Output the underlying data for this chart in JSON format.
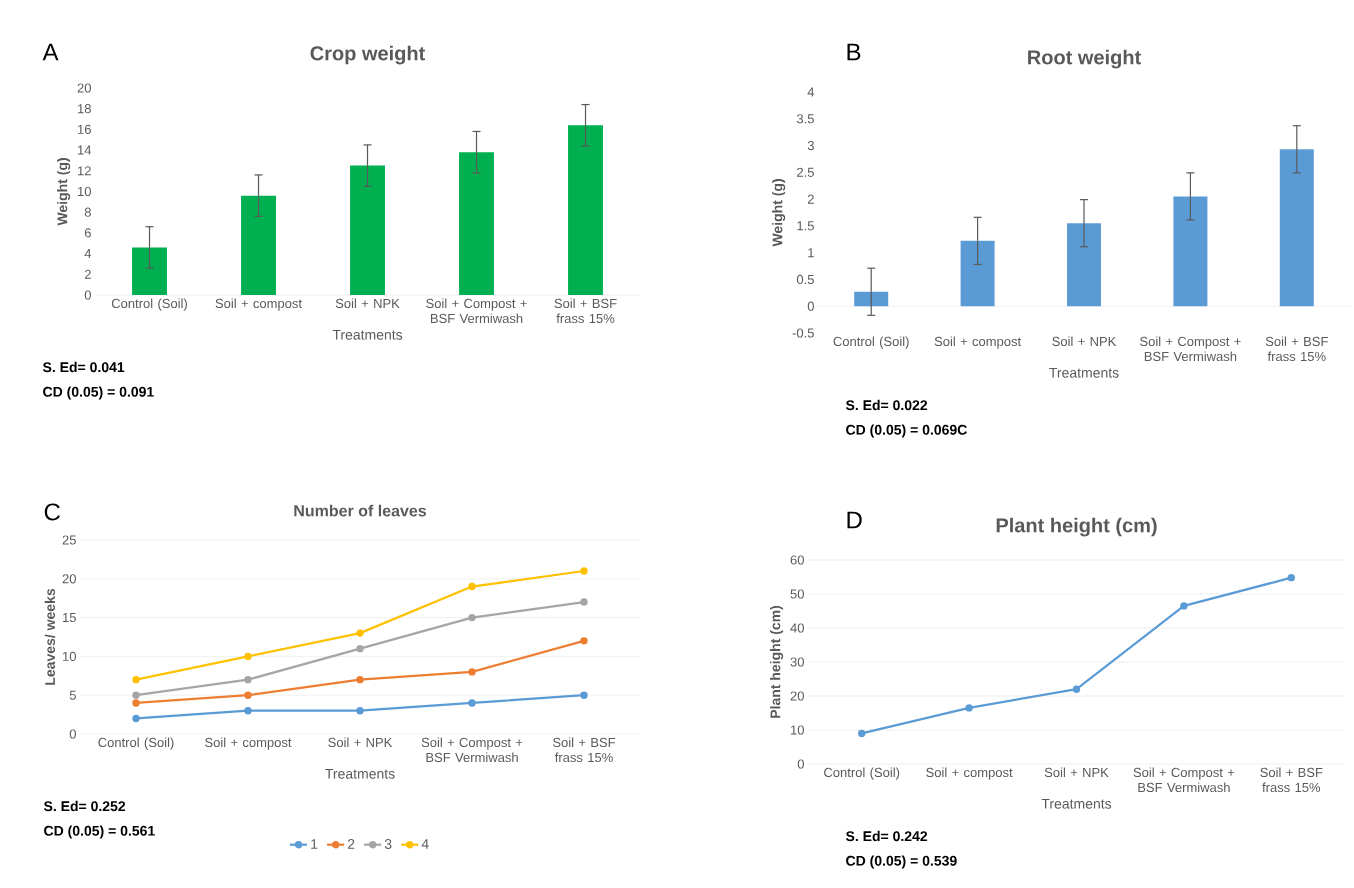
{
  "chart_data": [
    {
      "type": "bar",
      "title": "Crop weight",
      "xlabel": "Treatments",
      "ylabel": "Weight (g)",
      "annotations": [
        "A",
        "S. Ed= 0.041",
        "CD (0.05) = 0.091"
      ],
      "categories": [
        "Control (Soil)",
        "Soil + compost",
        "Soil + NPK",
        "Soil + Compost + BSF Vermiwash",
        "Soil + BSF frass 15%"
      ],
      "values": [
        4.6,
        9.6,
        12.5,
        13.8,
        16.4
      ],
      "errors": [
        2,
        2,
        2,
        2,
        2
      ],
      "color": "#00b050",
      "ylim": [
        0,
        20
      ],
      "yticks": [
        0,
        2,
        4,
        6,
        8,
        10,
        12,
        14,
        16,
        18,
        20
      ],
      "grid": false,
      "legend": false
    },
    {
      "type": "bar",
      "title": "Root weight",
      "xlabel": "Treatments",
      "ylabel": "Weight (g)",
      "annotations": [
        "B",
        "S. Ed= 0.022",
        "CD (0.05) = 0.069C"
      ],
      "categories": [
        "Control (Soil)",
        "Soil + compost",
        "Soil + NPK",
        "Soil + Compost + BSF Vermiwash",
        "Soil + BSF frass 15%"
      ],
      "values": [
        0.27,
        1.22,
        1.55,
        2.05,
        2.93
      ],
      "errors": [
        0.44,
        0.44,
        0.44,
        0.44,
        0.44
      ],
      "color": "#5b9bd5",
      "ylim": [
        -0.5,
        4
      ],
      "yticks": [
        -0.5,
        0,
        0.5,
        1,
        1.5,
        2,
        2.5,
        3,
        3.5,
        4
      ],
      "grid": false,
      "legend": false
    },
    {
      "type": "line",
      "title": "Number of leaves",
      "xlabel": "Treatments",
      "ylabel": "Leaves/ weeks",
      "annotations": [
        "C",
        "S. Ed= 0.252",
        "CD (0.05) = 0.561"
      ],
      "categories": [
        "Control (Soil)",
        "Soil + compost",
        "Soil + NPK",
        "Soil + Compost + BSF Vermiwash",
        "Soil + BSF frass 15%"
      ],
      "series": [
        {
          "name": "1",
          "color": "#5b9bd5",
          "values": [
            2,
            3,
            3,
            4,
            5
          ]
        },
        {
          "name": "2",
          "color": "#ed7d31",
          "values": [
            4,
            5,
            7,
            8,
            12
          ]
        },
        {
          "name": "3",
          "color": "#a5a5a5",
          "values": [
            5,
            7,
            11,
            15,
            17
          ]
        },
        {
          "name": "4",
          "color": "#ffc000",
          "values": [
            7,
            10,
            13,
            19,
            21
          ]
        }
      ],
      "ylim": [
        0,
        25
      ],
      "yticks": [
        0,
        5,
        10,
        15,
        20,
        25
      ],
      "grid": "y",
      "legend": "bottom",
      "marker": "circle",
      "line_style": "solid"
    },
    {
      "type": "line",
      "title": "Plant height (cm)",
      "xlabel": "Treatments",
      "ylabel": "Plant height (cm)",
      "annotations": [
        "D",
        "S. Ed= 0.242",
        "CD (0.05) = 0.539"
      ],
      "categories": [
        "Control (Soil)",
        "Soil + compost",
        "Soil + NPK",
        "Soil + Compost + BSF Vermiwash",
        "Soil + BSF frass 15%"
      ],
      "values": [
        9,
        16.5,
        22,
        46.5,
        54.8
      ],
      "color": "#5b9bd5",
      "ylim": [
        0,
        60
      ],
      "yticks": [
        0,
        10,
        20,
        30,
        40,
        50,
        60
      ],
      "grid": "y",
      "legend": false,
      "marker": "circle",
      "line_style": "solid"
    }
  ]
}
